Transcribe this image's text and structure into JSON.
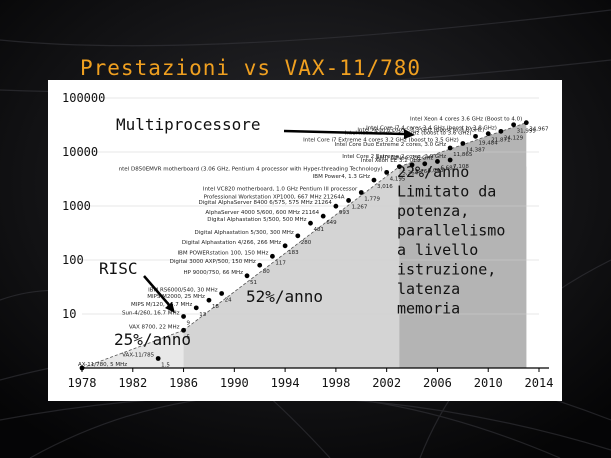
{
  "slide": {
    "title": "Prestazioni vs VAX-11/780",
    "colors": {
      "title": "#f0a020",
      "background": "#0e0e10",
      "panel": "#ffffff",
      "region_risc": "#e8e8e8",
      "region_52": "#d4d4d4",
      "region_22": "#b4b4b4"
    }
  },
  "chart_data": {
    "type": "scatter",
    "y_scale": "log",
    "ylim": [
      1,
      100000
    ],
    "xlim": [
      1978,
      2014
    ],
    "x_ticks": [
      "1978",
      "1982",
      "1986",
      "1990",
      "1994",
      "1998",
      "2002",
      "2006",
      "2010",
      "2014"
    ],
    "y_ticks": [
      {
        "value": 10,
        "label": "10"
      },
      {
        "value": 100,
        "label": "100"
      },
      {
        "value": 1000,
        "label": "1000"
      },
      {
        "value": 10000,
        "label": "10000"
      },
      {
        "value": 100000,
        "label": "100000"
      }
    ],
    "points": [
      {
        "x": 1978,
        "y": 1,
        "value": "",
        "label": "AX-11/780, 5 MHz"
      },
      {
        "x": 1984,
        "y": 1.5,
        "value": "1.5",
        "label": "VAX-11/785"
      },
      {
        "x": 1986,
        "y": 5,
        "value": "5",
        "label": "VAX 8700, 22 MHz"
      },
      {
        "x": 1986,
        "y": 9,
        "value": "9",
        "label": "Sun-4/260, 16.7 MHz"
      },
      {
        "x": 1987,
        "y": 13,
        "value": "13",
        "label": "MIPS M/120, 16.7 MHz"
      },
      {
        "x": 1988,
        "y": 18,
        "value": "18",
        "label": "MIPS M2000, 25 MHz"
      },
      {
        "x": 1989,
        "y": 24,
        "value": "24",
        "label": "IBM RS6000/540, 30 MHz"
      },
      {
        "x": 1991,
        "y": 51,
        "value": "51",
        "label": "HP 9000/750, 66 MHz"
      },
      {
        "x": 1992,
        "y": 80,
        "value": "80",
        "label": "Digital 3000 AXP/500, 150 MHz"
      },
      {
        "x": 1993,
        "y": 117,
        "value": "117",
        "label": "IBM POWERstation 100, 150 MHz"
      },
      {
        "x": 1994,
        "y": 183,
        "value": "183",
        "label": "Digital Alphastation 4/266, 266 MHz"
      },
      {
        "x": 1995,
        "y": 280,
        "value": "280",
        "label": "Digital Alphastation 5/300, 300 MHz"
      },
      {
        "x": 1996,
        "y": 481,
        "value": "481",
        "label": "Digital Alphastation 5/500, 500 MHz"
      },
      {
        "x": 1997,
        "y": 649,
        "value": "649",
        "label": "AlphaServer 4000 5/600, 600 MHz 21164"
      },
      {
        "x": 1998,
        "y": 993,
        "value": "993",
        "label": "Digital AlphaServer 8400 6/575, 575 MHz 21264"
      },
      {
        "x": 1999,
        "y": 1267,
        "value": "1,267",
        "label": "Professional Workstation XP1000, 667 MHz 21264A"
      },
      {
        "x": 2000,
        "y": 1779,
        "value": "1,779",
        "label": "Intel VC820 motherboard, 1.0 GHz Pentium III processor"
      },
      {
        "x": 2001,
        "y": 3016,
        "value": "3,016",
        "label": "IBM Power4, 1.3 GHz"
      },
      {
        "x": 2002,
        "y": 4195,
        "value": "4,195",
        "label": "ntel D850EMVR motherboard (3.06 GHz, Pentium 4 processor with Hyper-threading Technology)"
      },
      {
        "x": 2003,
        "y": 5364,
        "value": "5,364",
        "label": ""
      },
      {
        "x": 2004,
        "y": 5764,
        "value": "5,764",
        "label": ""
      },
      {
        "x": 2005,
        "y": 6043,
        "value": "6,043",
        "label": "Intel Xeon EE 3.2 GHz"
      },
      {
        "x": 2006,
        "y": 6681,
        "value": "6,681",
        "label": "AMD Athlon, 2.6 GHz"
      },
      {
        "x": 2007,
        "y": 7108,
        "value": "7,108",
        "label": "Intel Core 2 Extreme 2 cores, 2.9 GHz"
      },
      {
        "x": 2007,
        "y": 11865,
        "value": "11,865",
        "label": "Intel Core Duo Extreme 2 cores, 3.0 GHz"
      },
      {
        "x": 2008,
        "y": 14387,
        "value": "14,387",
        "label": "Intel Core i7 Extreme 4 cores 3.2 GHz (boost to 3.5 GHz)"
      },
      {
        "x": 2009,
        "y": 19484,
        "value": "19,484",
        "label": "Intel Xeon 4 cores, 3.3 GHz (boost to 3.6 GHz)"
      },
      {
        "x": 2010,
        "y": 21871,
        "value": "21,871",
        "label": "Intel Xeon 6 cores, 3.3 GHz (boost to 3.6 GHz)"
      },
      {
        "x": 2011,
        "y": 24129,
        "value": "24,129",
        "label": "Intel Core i7 4 cores 3.4 GHz (boost to 3.8 GHz)"
      },
      {
        "x": 2012,
        "y": 31999,
        "value": "31,999",
        "label": ""
      },
      {
        "x": 2013,
        "y": 34967,
        "value": "34,967",
        "label": "Intel Xeon 4 cores 3.6 GHz (Boost to 4.0)"
      }
    ],
    "regions": [
      {
        "from": 1978,
        "to": 1986,
        "color": "#e8e8e8"
      },
      {
        "from": 1986,
        "to": 2003,
        "color": "#d4d4d4"
      },
      {
        "from": 2003,
        "to": 2014,
        "color": "#b4b4b4"
      }
    ],
    "annotations": {
      "multiprocessore": "Multiprocessore",
      "risc": "RISC",
      "rate_25": "25%/anno",
      "rate_52": "52%/anno",
      "rate_22_lines": [
        "22%/anno",
        "Limitato da",
        "potenza,",
        "parallelismo",
        "a livello",
        "istruzione,",
        "latenza",
        "memoria"
      ]
    }
  }
}
